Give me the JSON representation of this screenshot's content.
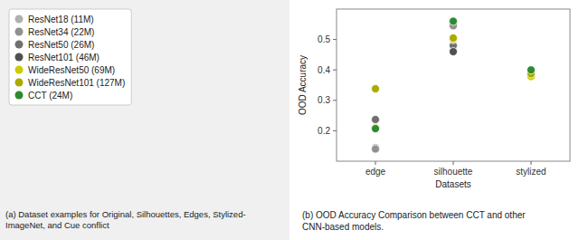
{
  "chart_data": {
    "type": "scatter",
    "xlabel": "Datasets",
    "ylabel": "OOD Accuracy",
    "categories": [
      "edge",
      "silhouette",
      "stylized"
    ],
    "ylim": [
      0.1,
      0.6
    ],
    "yticks": [
      0.2,
      0.3,
      0.4,
      0.5
    ],
    "grid": false,
    "legend": "upper left",
    "marker": "circle",
    "series": [
      {
        "name": "ResNet18 (11M)",
        "color": "#b0b0b0",
        "values": [
          0.145,
          0.555,
          null
        ]
      },
      {
        "name": "ResNet34 (22M)",
        "color": "#909090",
        "values": [
          0.14,
          0.545,
          null
        ]
      },
      {
        "name": "ResNet50 (26M)",
        "color": "#707070",
        "values": [
          0.237,
          0.48,
          null
        ]
      },
      {
        "name": "ResNet101 (46M)",
        "color": "#505050",
        "values": [
          null,
          0.46,
          null
        ]
      },
      {
        "name": "WideResNet50 (69M)",
        "color": "#cccc00",
        "values": [
          0.21,
          0.5,
          0.378
        ]
      },
      {
        "name": "WideResNet101 (127M)",
        "color": "#aaaa00",
        "values": [
          0.338,
          0.505,
          0.387
        ]
      },
      {
        "name": "CCT (24M)",
        "color": "#2d8a2d",
        "values": [
          0.207,
          0.56,
          0.4
        ]
      }
    ],
    "annotations": [
      "(a) Dataset examples for Original, Silhouettes, Edges, Stylized-\nImageNet, and Cue conflict",
      "(b) OOD Accuracy Comparison between CCT and other\nCNN-based models."
    ]
  }
}
